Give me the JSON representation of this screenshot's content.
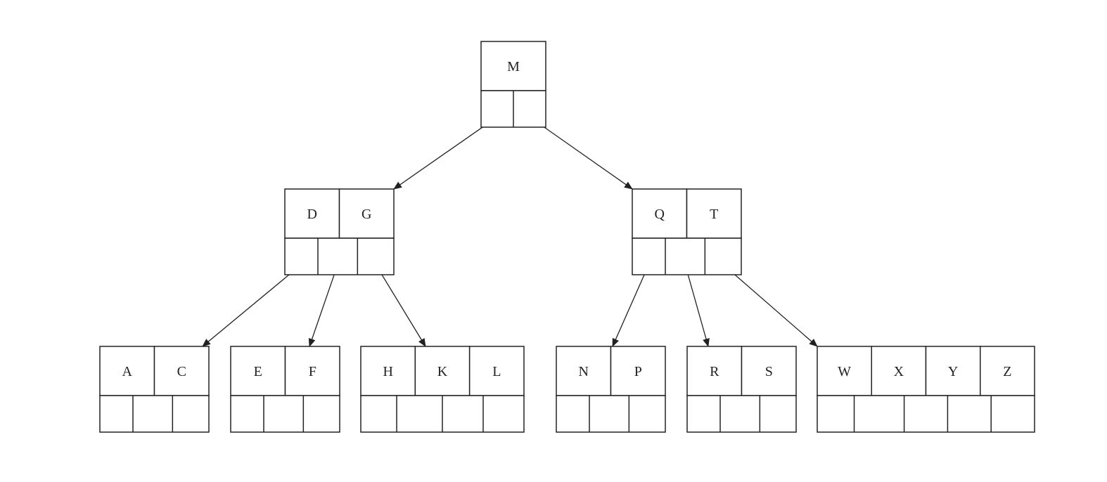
{
  "tree": {
    "levels": [
      [
        {
          "id": "root",
          "keys": [
            "M"
          ]
        }
      ],
      [
        {
          "id": "dg",
          "keys": [
            "D",
            "G"
          ]
        },
        {
          "id": "qt",
          "keys": [
            "Q",
            "T"
          ]
        }
      ],
      [
        {
          "id": "ac",
          "keys": [
            "A",
            "C"
          ]
        },
        {
          "id": "ef",
          "keys": [
            "E",
            "F"
          ]
        },
        {
          "id": "hkl",
          "keys": [
            "H",
            "K",
            "L"
          ]
        },
        {
          "id": "np",
          "keys": [
            "N",
            "P"
          ]
        },
        {
          "id": "rs",
          "keys": [
            "R",
            "S"
          ]
        },
        {
          "id": "wxyz",
          "keys": [
            "W",
            "X",
            "Y",
            "Z"
          ]
        }
      ]
    ],
    "edges": [
      {
        "from": "root",
        "pointer": 0,
        "to": "dg"
      },
      {
        "from": "root",
        "pointer": 1,
        "to": "qt"
      },
      {
        "from": "dg",
        "pointer": 0,
        "to": "ac"
      },
      {
        "from": "dg",
        "pointer": 1,
        "to": "ef"
      },
      {
        "from": "dg",
        "pointer": 2,
        "to": "hkl"
      },
      {
        "from": "qt",
        "pointer": 0,
        "to": "np"
      },
      {
        "from": "qt",
        "pointer": 1,
        "to": "rs"
      },
      {
        "from": "qt",
        "pointer": 2,
        "to": "wxyz"
      }
    ]
  },
  "colors": {
    "line": "#222222",
    "background": "#ffffff"
  }
}
